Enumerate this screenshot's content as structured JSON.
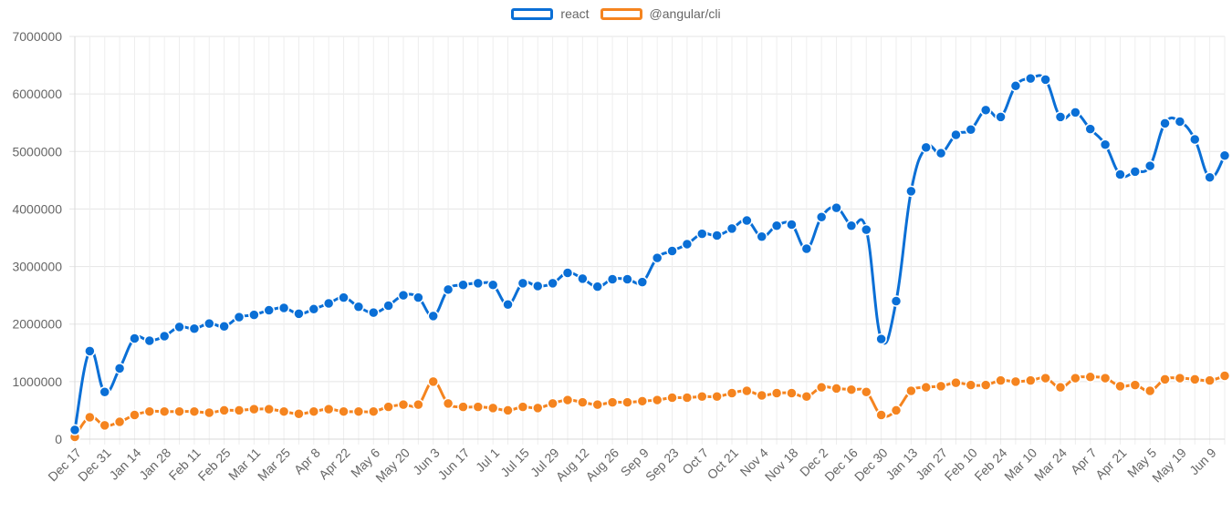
{
  "chart_data": {
    "type": "line",
    "legend_position": "top",
    "grid": true,
    "ylim": [
      0,
      7000000
    ],
    "yticks": [
      "7000000",
      "6000000",
      "5000000",
      "4000000",
      "3000000",
      "2000000",
      "1000000",
      "0"
    ],
    "x_tick_labels": [
      "Dec 17",
      "Dec 31",
      "Jan 14",
      "Jan 28",
      "Feb 11",
      "Feb 25",
      "Mar 11",
      "Mar 25",
      "Apr 8",
      "Apr 22",
      "May 6",
      "May 20",
      "Jun 3",
      "Jun 17",
      "Jul 1",
      "Jul 15",
      "Jul 29",
      "Aug 12",
      "Aug 26",
      "Sep 9",
      "Sep 23",
      "Oct 7",
      "Oct 21",
      "Nov 4",
      "Nov 18",
      "Dec 2",
      "Dec 16",
      "Dec 30",
      "Jan 13",
      "Jan 27",
      "Feb 10",
      "Feb 24",
      "Mar 10",
      "Mar 24",
      "Apr 7",
      "Apr 21",
      "May 5",
      "May 19",
      "Jun 9"
    ],
    "series": [
      {
        "name": "react",
        "color": "#0a6fd6",
        "values": [
          160000,
          1530000,
          820000,
          1230000,
          1750000,
          1710000,
          1790000,
          1950000,
          1920000,
          2010000,
          1960000,
          2120000,
          2160000,
          2240000,
          2280000,
          2180000,
          2260000,
          2360000,
          2460000,
          2300000,
          2200000,
          2320000,
          2500000,
          2460000,
          2140000,
          2600000,
          2680000,
          2710000,
          2680000,
          2340000,
          2710000,
          2660000,
          2710000,
          2890000,
          2790000,
          2650000,
          2780000,
          2780000,
          2730000,
          3150000,
          3270000,
          3390000,
          3570000,
          3540000,
          3660000,
          3800000,
          3520000,
          3710000,
          3730000,
          3310000,
          3860000,
          4020000,
          3710000,
          3640000,
          1740000,
          2400000,
          4310000,
          5070000,
          4970000,
          5290000,
          5380000,
          5720000,
          5600000,
          6140000,
          6270000,
          6250000,
          5600000,
          5680000,
          5390000,
          5120000,
          4600000,
          4650000,
          4750000,
          5490000,
          5520000,
          5210000,
          4550000,
          4930000
        ]
      },
      {
        "name": "@angular/cli",
        "color": "#f5841f",
        "values": [
          40000,
          380000,
          240000,
          300000,
          420000,
          480000,
          480000,
          480000,
          480000,
          460000,
          500000,
          500000,
          520000,
          520000,
          480000,
          440000,
          480000,
          520000,
          480000,
          480000,
          480000,
          560000,
          600000,
          600000,
          1000000,
          620000,
          560000,
          560000,
          540000,
          500000,
          560000,
          540000,
          620000,
          680000,
          640000,
          600000,
          640000,
          640000,
          660000,
          680000,
          720000,
          720000,
          740000,
          740000,
          800000,
          840000,
          760000,
          800000,
          800000,
          740000,
          900000,
          880000,
          860000,
          820000,
          420000,
          500000,
          840000,
          900000,
          920000,
          980000,
          940000,
          940000,
          1020000,
          1000000,
          1020000,
          1060000,
          900000,
          1060000,
          1080000,
          1060000,
          920000,
          940000,
          840000,
          1040000,
          1060000,
          1040000,
          1020000,
          1100000
        ]
      }
    ]
  }
}
